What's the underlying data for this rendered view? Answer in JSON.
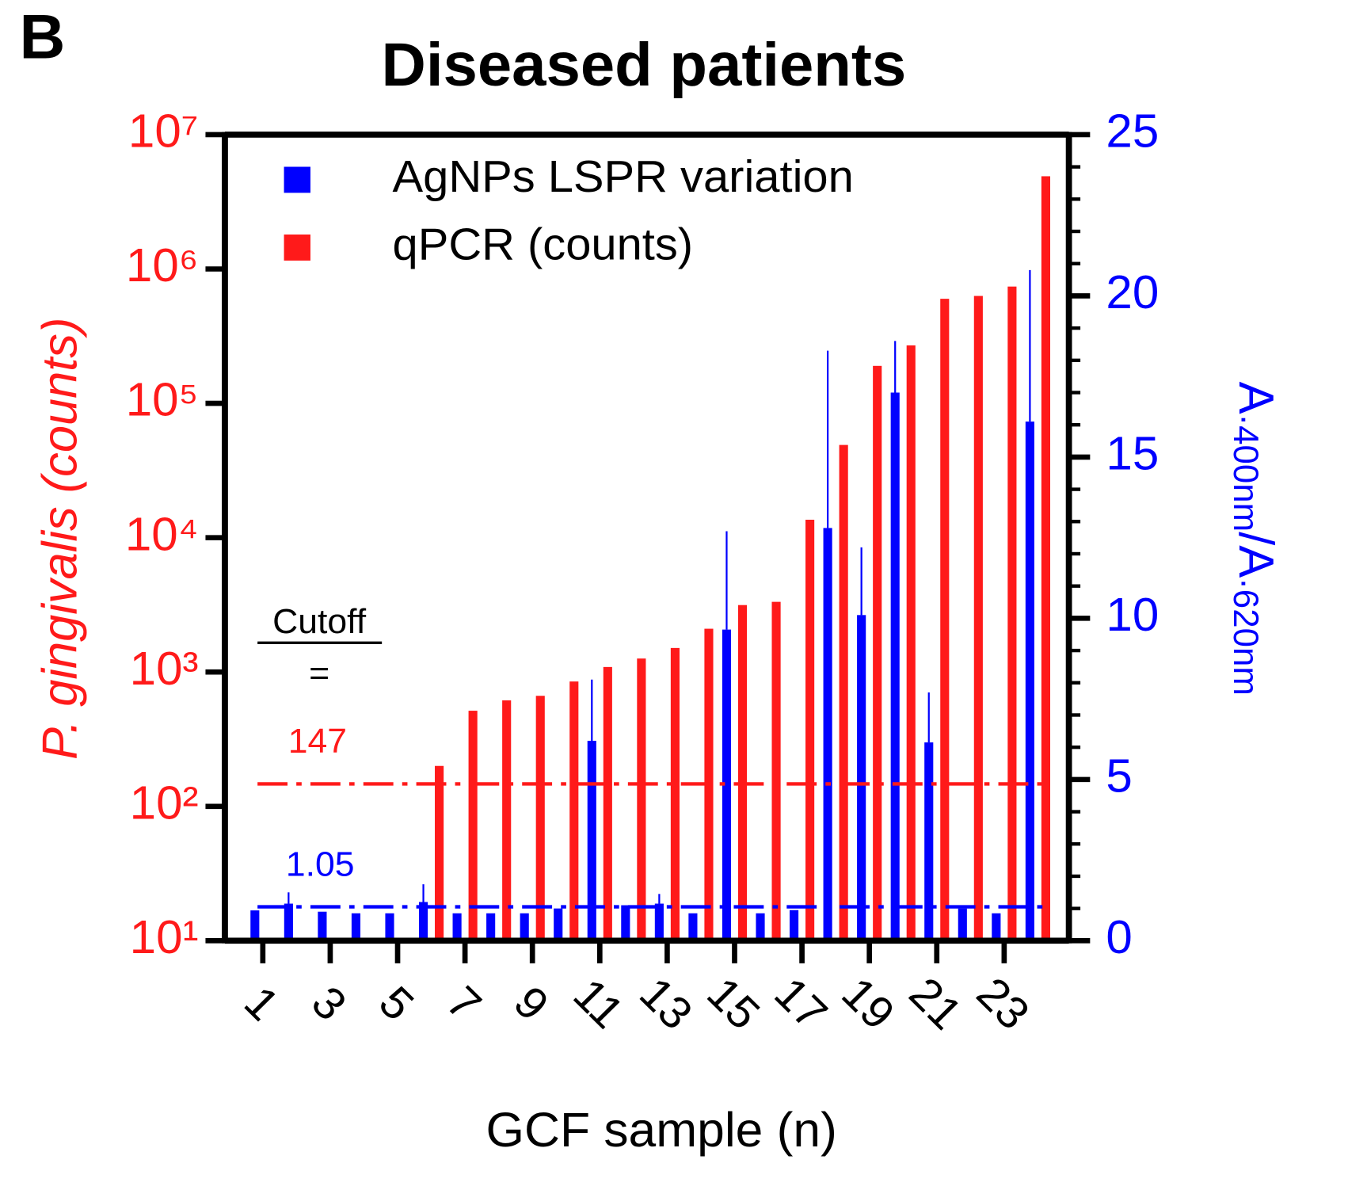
{
  "chart_data": {
    "type": "bar",
    "panel_label": "B",
    "title": "Diseased patients",
    "x_label": "GCF sample (n)",
    "y_label": "P. gingivalis (counts)",
    "y2_label_parts": [
      "A",
      "·400nm",
      "/A",
      "·620nm"
    ],
    "categories": [
      "1",
      null,
      "3",
      null,
      "5",
      null,
      "7",
      null,
      "9",
      null,
      "11",
      null,
      "13",
      null,
      "15",
      null,
      "17",
      null,
      "19",
      null,
      "21",
      null,
      "23",
      null
    ],
    "series": [
      {
        "name": "AgNPs LSPR variation",
        "color": "#0000ff",
        "axis": "y2",
        "values": [
          0.94,
          1.15,
          0.9,
          0.85,
          0.85,
          1.2,
          0.85,
          0.85,
          0.85,
          1.0,
          6.2,
          1.1,
          1.15,
          0.85,
          9.65,
          0.85,
          0.95,
          12.8,
          10.1,
          17.0,
          6.15,
          1.0,
          0.85,
          16.1
        ],
        "errors": [
          null,
          0.35,
          null,
          null,
          null,
          0.55,
          null,
          null,
          null,
          null,
          1.9,
          null,
          0.3,
          null,
          3.05,
          null,
          null,
          5.5,
          2.1,
          1.6,
          1.55,
          null,
          null,
          4.7
        ]
      },
      {
        "name": "qPCR (counts)",
        "color": "#ff1a1a",
        "axis": "y",
        "values": [
          null,
          null,
          null,
          null,
          null,
          200,
          515,
          615,
          665,
          850,
          1090,
          1260,
          1510,
          2100,
          3150,
          3330,
          13600,
          49000,
          190000,
          270000,
          600000,
          630000,
          740000,
          4900000
        ]
      }
    ],
    "ylim": [
      10,
      10000000
    ],
    "y_log": true,
    "yticks": [
      {
        "value": 10,
        "label": "10¹"
      },
      {
        "value": 100,
        "label": "10²"
      },
      {
        "value": 1000,
        "label": "10³"
      },
      {
        "value": 10000,
        "label": "10⁴"
      },
      {
        "value": 100000,
        "label": "10⁵"
      },
      {
        "value": 1000000,
        "label": "10⁶"
      },
      {
        "value": 10000000,
        "label": "10⁷"
      }
    ],
    "y2lim": [
      0,
      25
    ],
    "y2ticks": [
      0,
      5,
      10,
      15,
      20,
      25
    ],
    "y2minor_ticks": [
      1,
      2,
      3,
      4,
      6,
      7,
      8,
      9,
      11,
      12,
      13,
      14,
      16,
      17,
      18,
      19,
      21,
      22,
      23,
      24
    ],
    "cutoff_label": "Cutoff",
    "cutoff_equals": "=",
    "cutoff_qpcr": 147,
    "cutoff_lspr": 1.05,
    "legend": "upper left",
    "grid": false
  }
}
